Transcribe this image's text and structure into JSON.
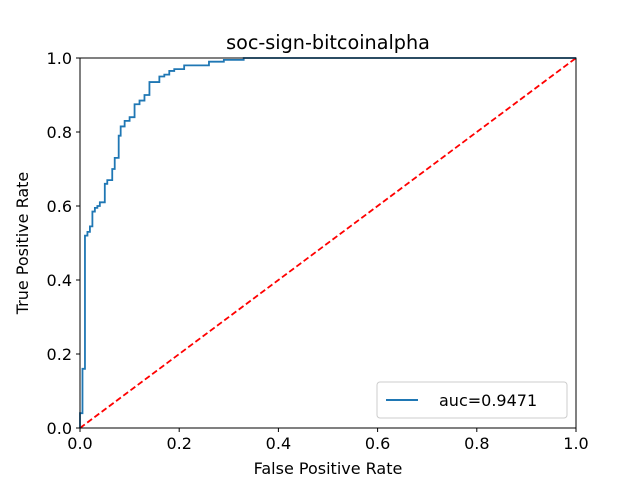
{
  "chart_data": {
    "type": "line",
    "title": "soc-sign-bitcoinalpha",
    "xlabel": "False Positive Rate",
    "ylabel": "True Positive Rate",
    "xlim": [
      0.0,
      1.0
    ],
    "ylim": [
      0.0,
      1.0
    ],
    "xticks": [
      "0.0",
      "0.2",
      "0.4",
      "0.6",
      "0.8",
      "1.0"
    ],
    "yticks": [
      "0.0",
      "0.2",
      "0.4",
      "0.6",
      "0.8",
      "1.0"
    ],
    "grid": false,
    "legend_position": "lower-right",
    "series": [
      {
        "name": "auc=0.9471",
        "color": "#1f77b4",
        "style": "solid",
        "x": [
          0.0,
          0.0,
          0.005,
          0.005,
          0.01,
          0.01,
          0.015,
          0.015,
          0.02,
          0.02,
          0.025,
          0.025,
          0.03,
          0.03,
          0.035,
          0.035,
          0.04,
          0.04,
          0.05,
          0.05,
          0.055,
          0.055,
          0.065,
          0.065,
          0.07,
          0.07,
          0.078,
          0.078,
          0.082,
          0.082,
          0.09,
          0.09,
          0.1,
          0.1,
          0.11,
          0.11,
          0.12,
          0.12,
          0.13,
          0.13,
          0.14,
          0.14,
          0.16,
          0.16,
          0.17,
          0.17,
          0.18,
          0.18,
          0.19,
          0.19,
          0.21,
          0.21,
          0.26,
          0.26,
          0.29,
          0.29,
          0.33,
          0.33,
          0.4,
          1.0
        ],
        "y": [
          0.0,
          0.04,
          0.04,
          0.16,
          0.16,
          0.52,
          0.52,
          0.53,
          0.53,
          0.545,
          0.545,
          0.585,
          0.585,
          0.595,
          0.595,
          0.6,
          0.6,
          0.61,
          0.61,
          0.66,
          0.66,
          0.67,
          0.67,
          0.7,
          0.7,
          0.73,
          0.73,
          0.79,
          0.79,
          0.815,
          0.815,
          0.83,
          0.83,
          0.84,
          0.84,
          0.875,
          0.875,
          0.885,
          0.885,
          0.9,
          0.9,
          0.935,
          0.935,
          0.95,
          0.95,
          0.955,
          0.955,
          0.965,
          0.965,
          0.97,
          0.97,
          0.98,
          0.98,
          0.99,
          0.99,
          0.995,
          0.995,
          1.0,
          1.0,
          1.0
        ]
      },
      {
        "color": "#ff0000",
        "style": "dashed",
        "x": [
          0.0,
          1.0
        ],
        "y": [
          0.0,
          1.0
        ]
      }
    ]
  }
}
